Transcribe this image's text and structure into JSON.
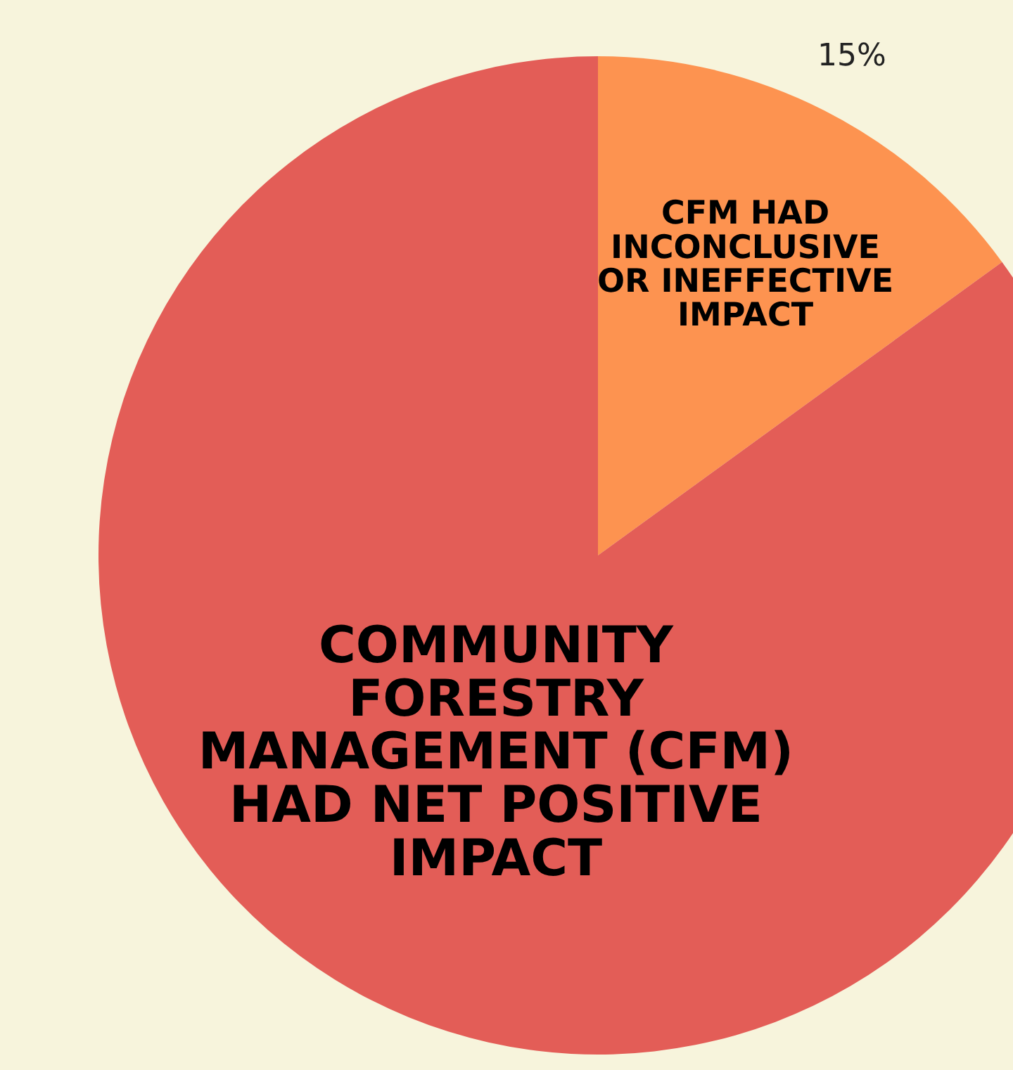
{
  "chart_data": {
    "type": "pie",
    "categories": [
      "CFM HAD INCONCLUSIVE OR INEFFECTIVE IMPACT",
      "COMMUNITY FORESTRY MANAGEMENT (CFM) HAD NET POSITIVE IMPACT"
    ],
    "values": [
      15,
      85
    ],
    "colors": [
      "#fd9350",
      "#e35d57"
    ],
    "value_labels": [
      "15%",
      null
    ],
    "legend": false
  }
}
